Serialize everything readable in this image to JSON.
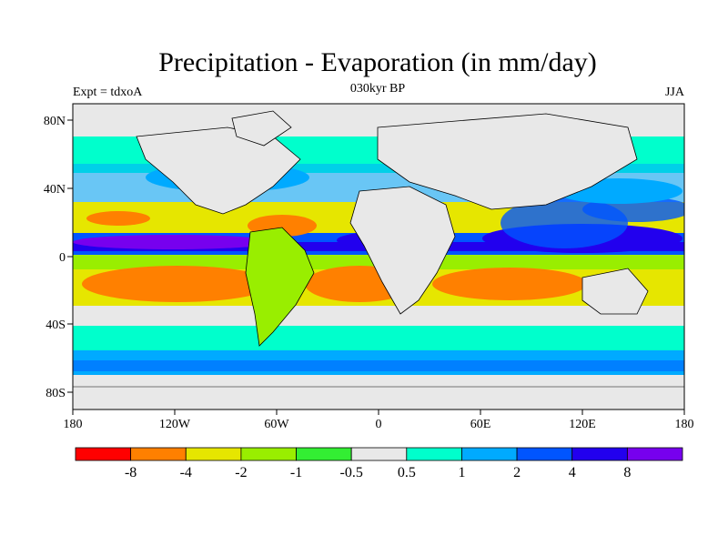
{
  "header": {
    "title": "Precipitation - Evaporation (in mm/day)",
    "experiment": "Expt = tdxoA",
    "period": "030kyr BP",
    "season": "JJA"
  },
  "map": {
    "lon_ticks": [
      "180",
      "120W",
      "60W",
      "0",
      "60E",
      "120E",
      "180"
    ],
    "lat_ticks": [
      "80N",
      "40N",
      "0",
      "40S",
      "80S"
    ]
  },
  "colorbar": {
    "labels": [
      "-8",
      "-4",
      "-2",
      "-1",
      "-0.5",
      "0.5",
      "1",
      "2",
      "4",
      "8"
    ],
    "colors": [
      "#ff0000",
      "#ff8000",
      "#e6e600",
      "#99ee00",
      "#33ee33",
      "#e8e8e8",
      "#00ffcc",
      "#00aaff",
      "#0055ff",
      "#2200ee",
      "#7700ee"
    ]
  }
}
